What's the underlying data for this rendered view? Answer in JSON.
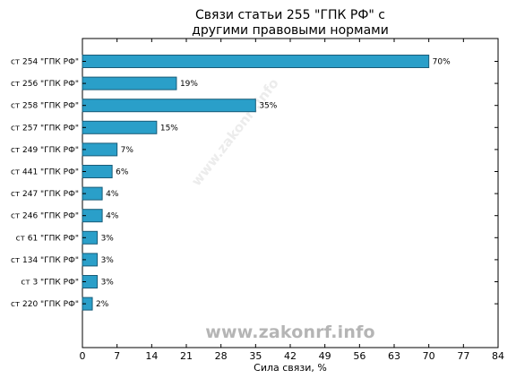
{
  "chart_data": {
    "type": "bar",
    "orientation": "horizontal",
    "title_line1": "Связи статьи 255 \"ГПК РФ\" с",
    "title_line2": "другими правовыми нормами",
    "xlabel": "Сила связи, %",
    "ylabel": "",
    "xlim": [
      0,
      84
    ],
    "xticks": [
      "0",
      "7",
      "14",
      "21",
      "28",
      "35",
      "42",
      "49",
      "56",
      "63",
      "70",
      "77",
      "84"
    ],
    "categories": [
      "ст 254 \"ГПК РФ\"",
      "ст 256 \"ГПК РФ\"",
      "ст 258 \"ГПК РФ\"",
      "ст 257 \"ГПК РФ\"",
      "ст 249 \"ГПК РФ\"",
      "ст 441 \"ГПК РФ\"",
      "ст 247 \"ГПК РФ\"",
      "ст 246 \"ГПК РФ\"",
      "ст 61 \"ГПК РФ\"",
      "ст 134 \"ГПК РФ\"",
      "ст 3 \"ГПК РФ\"",
      "ст 220 \"ГПК РФ\""
    ],
    "values": [
      70,
      19,
      35,
      15,
      7,
      6,
      4,
      4,
      3,
      3,
      3,
      2
    ],
    "value_labels": [
      "70%",
      "19%",
      "35%",
      "15%",
      "7%",
      "6%",
      "4%",
      "4%",
      "3%",
      "3%",
      "3%",
      "2%"
    ],
    "bar_color": "#2a9fc9",
    "bar_edge_color": "#1a5c78",
    "grid": false,
    "legend": "none"
  },
  "watermark": "www.zakonrf.info"
}
